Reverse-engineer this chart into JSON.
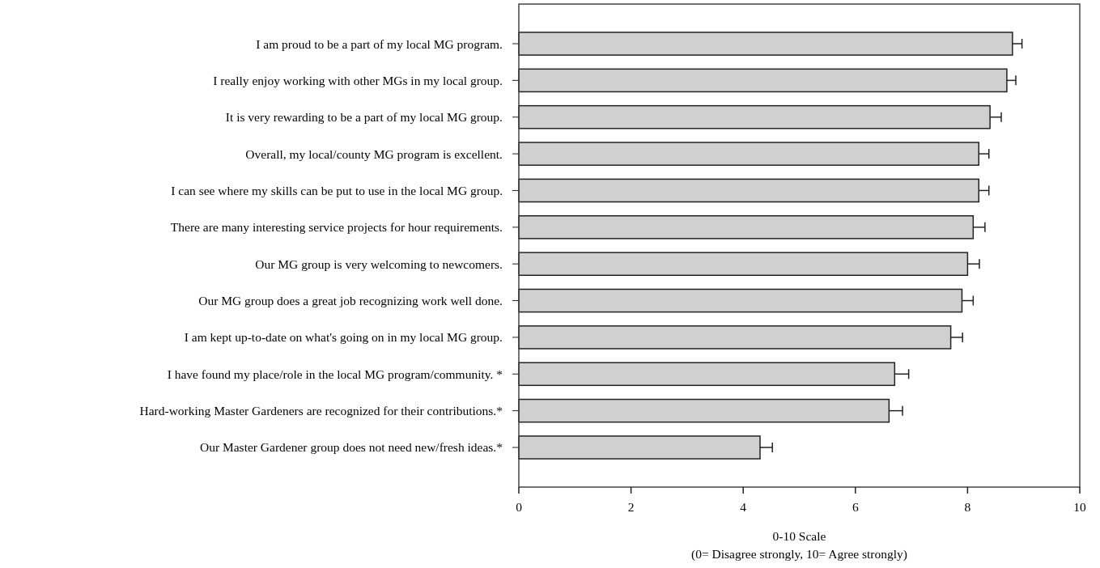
{
  "chart_data": {
    "type": "bar",
    "orientation": "horizontal",
    "xlabel": "0-10 Scale\n(0= Disagree strongly, 10= Agree strongly)",
    "categories": [
      "I am proud to be a part of my local MG program.",
      "I really enjoy working with other MGs in my local group.",
      "It is very rewarding to be a part of my local MG group.",
      "Overall, my local/county MG program is excellent.",
      "I can see where my skills can be put to use in the local MG group.",
      "There are many interesting service projects for hour requirements.",
      "Our MG group is very welcoming to newcomers.",
      "Our MG group does a great job recognizing work well done.",
      "I am kept up-to-date on what's going on in my local MG group.",
      "I have found my place/role in the local MG program/community. *",
      "Hard-working Master Gardeners are recognized for their contributions.*",
      "Our Master Gardener group does not need new/fresh ideas.*"
    ],
    "values": [
      8.8,
      8.7,
      8.4,
      8.2,
      8.2,
      8.1,
      8.0,
      7.9,
      7.7,
      6.7,
      6.6,
      4.3
    ],
    "errors": [
      0.17,
      0.16,
      0.2,
      0.18,
      0.18,
      0.21,
      0.21,
      0.2,
      0.21,
      0.25,
      0.24,
      0.22
    ],
    "color": "#d0d0d0",
    "xlim": [
      0,
      10
    ],
    "xticks": [
      0,
      2,
      4,
      6,
      8,
      10
    ]
  }
}
